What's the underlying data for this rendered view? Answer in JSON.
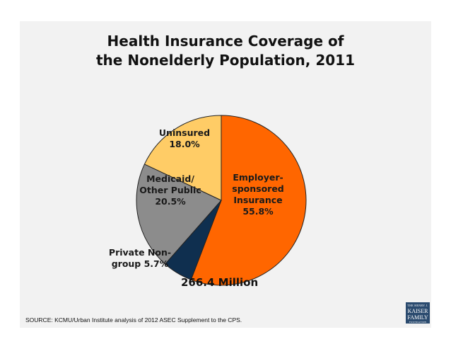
{
  "chart_data": {
    "type": "pie",
    "title": [
      "Health Insurance Coverage of",
      "the Nonelderly Population, 2011"
    ],
    "slices": [
      {
        "name": "Employer-sponsored Insurance",
        "label_lines": [
          "Employer-",
          "sponsored",
          "Insurance",
          "55.8%"
        ],
        "value": 55.8,
        "color": "#ff6600",
        "label_color": "#1a1a1a"
      },
      {
        "name": "Private Non-group",
        "label_lines": [
          "Private Non-",
          "group 5.7%"
        ],
        "value": 5.7,
        "color": "#0f2f4f",
        "label_color": "#1a1a1a"
      },
      {
        "name": "Medicaid/Other Public",
        "label_lines": [
          "Medicaid/",
          "Other Public",
          "20.5%"
        ],
        "value": 20.5,
        "color": "#8c8c8c",
        "label_color": "#1a1a1a"
      },
      {
        "name": "Uninsured",
        "label_lines": [
          "Uninsured",
          "18.0%"
        ],
        "value": 18.0,
        "color": "#ffcc66",
        "label_color": "#1a1a1a"
      }
    ],
    "total_label": "266.4 Million"
  },
  "source": "SOURCE: KCMU/Urban Institute analysis of 2012 ASEC Supplement to the CPS.",
  "logo": {
    "line1": "THE HENRY J.",
    "line2a": "KAISER",
    "line2b": "FAMILY",
    "line3": "FOUNDATION"
  }
}
